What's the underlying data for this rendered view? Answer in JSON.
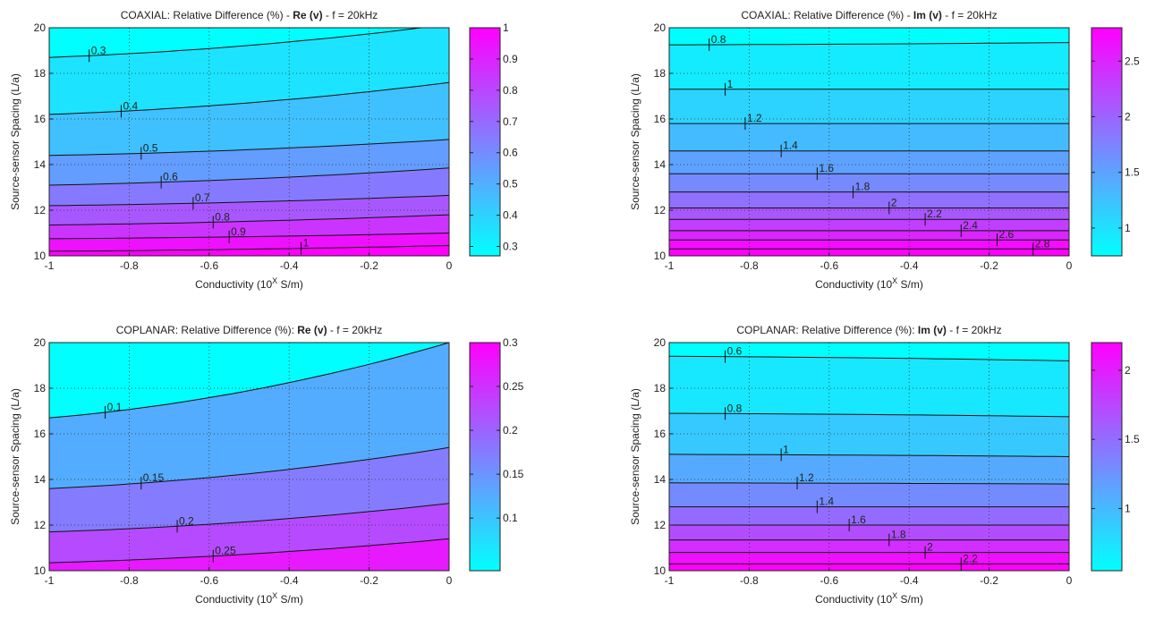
{
  "chart_data": [
    {
      "type": "heatmap",
      "title_prefix": "COAXIAL: Relative Difference (%) - ",
      "title_bold": "Re (v)",
      "title_suffix": " - f = 20kHz",
      "xlabel": "Conductivity (10",
      "xlabel_sup": "X",
      "xlabel_tail": " S/m)",
      "ylabel": "Source-sensor Spacing (L/a)",
      "xlim": [
        -1,
        0
      ],
      "ylim": [
        10,
        20
      ],
      "xticks": [
        "-1",
        "-0.8",
        "-0.6",
        "-0.4",
        "-0.2",
        "0"
      ],
      "yticks": [
        "10",
        "12",
        "14",
        "16",
        "18",
        "20"
      ],
      "grid": true,
      "colormap": "cool",
      "clim": [
        0.27,
        1.0
      ],
      "colorbar_ticks": [
        "0.3",
        "0.4",
        "0.5",
        "0.6",
        "0.7",
        "0.8",
        "0.9",
        "1"
      ],
      "contours": [
        {
          "level": "0.3",
          "y_left": 18.7,
          "y_right": 20.15,
          "label_x": -0.9
        },
        {
          "level": "0.4",
          "y_left": 16.2,
          "y_right": 17.6,
          "label_x": -0.82
        },
        {
          "level": "0.5",
          "y_left": 14.4,
          "y_right": 15.1,
          "label_x": -0.77
        },
        {
          "level": "0.6",
          "y_left": 13.1,
          "y_right": 13.85,
          "label_x": -0.72
        },
        {
          "level": "0.7",
          "y_left": 12.2,
          "y_right": 12.65,
          "label_x": -0.64
        },
        {
          "level": "0.8",
          "y_left": 11.35,
          "y_right": 11.8,
          "label_x": -0.59
        },
        {
          "level": "0.9",
          "y_left": 10.75,
          "y_right": 11.0,
          "label_x": -0.55
        },
        {
          "level": "1",
          "y_left": 10.2,
          "y_right": 10.45,
          "label_x": -0.37
        }
      ]
    },
    {
      "type": "heatmap",
      "title_prefix": "COAXIAL: Relative Difference (%) - ",
      "title_bold": "Im (v)",
      "title_suffix": " - f = 20kHz",
      "xlabel": "Conductivity (10",
      "xlabel_sup": "X",
      "xlabel_tail": " S/m)",
      "ylabel": "Source-sensor Spacing (L/a)",
      "xlim": [
        -1,
        0
      ],
      "ylim": [
        10,
        20
      ],
      "xticks": [
        "-1",
        "-0.8",
        "-0.6",
        "-0.4",
        "-0.2",
        "0"
      ],
      "yticks": [
        "10",
        "12",
        "14",
        "16",
        "18",
        "20"
      ],
      "grid": true,
      "colormap": "cool",
      "clim": [
        0.75,
        2.8
      ],
      "colorbar_ticks": [
        "1",
        "1.5",
        "2",
        "2.5"
      ],
      "contours": [
        {
          "level": "0.8",
          "y_left": 19.25,
          "y_right": 19.35,
          "label_x": -0.9
        },
        {
          "level": "1",
          "y_left": 17.3,
          "y_right": 17.3,
          "label_x": -0.86
        },
        {
          "level": "1.2",
          "y_left": 15.8,
          "y_right": 15.8,
          "label_x": -0.81
        },
        {
          "level": "1.4",
          "y_left": 14.6,
          "y_right": 14.6,
          "label_x": -0.72
        },
        {
          "level": "1.6",
          "y_left": 13.6,
          "y_right": 13.6,
          "label_x": -0.63
        },
        {
          "level": "1.8",
          "y_left": 12.8,
          "y_right": 12.8,
          "label_x": -0.54
        },
        {
          "level": "2",
          "y_left": 12.1,
          "y_right": 12.1,
          "label_x": -0.45
        },
        {
          "level": "2.2",
          "y_left": 11.6,
          "y_right": 11.6,
          "label_x": -0.36
        },
        {
          "level": "2.4",
          "y_left": 11.1,
          "y_right": 11.1,
          "label_x": -0.27
        },
        {
          "level": "2.6",
          "y_left": 10.7,
          "y_right": 10.7,
          "label_x": -0.18
        },
        {
          "level": "2.8",
          "y_left": 10.3,
          "y_right": 10.3,
          "label_x": -0.09
        }
      ]
    },
    {
      "type": "heatmap",
      "title_prefix": "COPLANAR: Relative Difference (%):  ",
      "title_bold": "Re (v)",
      "title_suffix": " - f = 20kHz",
      "xlabel": "Conductivity (10",
      "xlabel_sup": "X",
      "xlabel_tail": " S/m)",
      "ylabel": "Source-sensor Spacing (L/a)",
      "xlim": [
        -1,
        0
      ],
      "ylim": [
        10,
        20
      ],
      "xticks": [
        "-1",
        "-0.8",
        "-0.6",
        "-0.4",
        "-0.2",
        "0"
      ],
      "yticks": [
        "10",
        "12",
        "14",
        "16",
        "18",
        "20"
      ],
      "grid": true,
      "colormap": "cool",
      "clim": [
        0.04,
        0.3
      ],
      "colorbar_ticks": [
        "0.1",
        "0.15",
        "0.2",
        "0.25",
        "0.3"
      ],
      "contours": [
        {
          "level": "0.1",
          "y_left": 16.7,
          "y_right": 20.0,
          "label_x": -0.86
        },
        {
          "level": "0.15",
          "y_left": 13.6,
          "y_right": 15.4,
          "label_x": -0.77
        },
        {
          "level": "0.2",
          "y_left": 11.7,
          "y_right": 12.95,
          "label_x": -0.68
        },
        {
          "level": "0.25",
          "y_left": 10.35,
          "y_right": 11.4,
          "label_x": -0.59
        }
      ]
    },
    {
      "type": "heatmap",
      "title_prefix": "COPLANAR: Relative Difference (%):  ",
      "title_bold": "Im (v)",
      "title_suffix": " - f = 20kHz",
      "xlabel": "Conductivity (10",
      "xlabel_sup": "X",
      "xlabel_tail": " S/m)",
      "ylabel": "Source-sensor Spacing (L/a)",
      "xlim": [
        -1,
        0
      ],
      "ylim": [
        10,
        20
      ],
      "xticks": [
        "-1",
        "-0.8",
        "-0.6",
        "-0.4",
        "-0.2",
        "0"
      ],
      "yticks": [
        "10",
        "12",
        "14",
        "16",
        "18",
        "20"
      ],
      "grid": true,
      "colormap": "cool",
      "clim": [
        0.55,
        2.2
      ],
      "colorbar_ticks": [
        "1",
        "1.5",
        "2"
      ],
      "contours": [
        {
          "level": "0.6",
          "y_left": 19.4,
          "y_right": 19.2,
          "label_x": -0.86
        },
        {
          "level": "0.8",
          "y_left": 16.9,
          "y_right": 16.75,
          "label_x": -0.86
        },
        {
          "level": "1",
          "y_left": 15.1,
          "y_right": 15.0,
          "label_x": -0.72
        },
        {
          "level": "1.2",
          "y_left": 13.85,
          "y_right": 13.8,
          "label_x": -0.68
        },
        {
          "level": "1.4",
          "y_left": 12.8,
          "y_right": 12.8,
          "label_x": -0.63
        },
        {
          "level": "1.6",
          "y_left": 12.0,
          "y_right": 12.0,
          "label_x": -0.55
        },
        {
          "level": "1.8",
          "y_left": 11.35,
          "y_right": 11.35,
          "label_x": -0.45
        },
        {
          "level": "2",
          "y_left": 10.8,
          "y_right": 10.8,
          "label_x": -0.36
        },
        {
          "level": "2.2",
          "y_left": 10.3,
          "y_right": 10.3,
          "label_x": -0.27
        }
      ]
    }
  ]
}
